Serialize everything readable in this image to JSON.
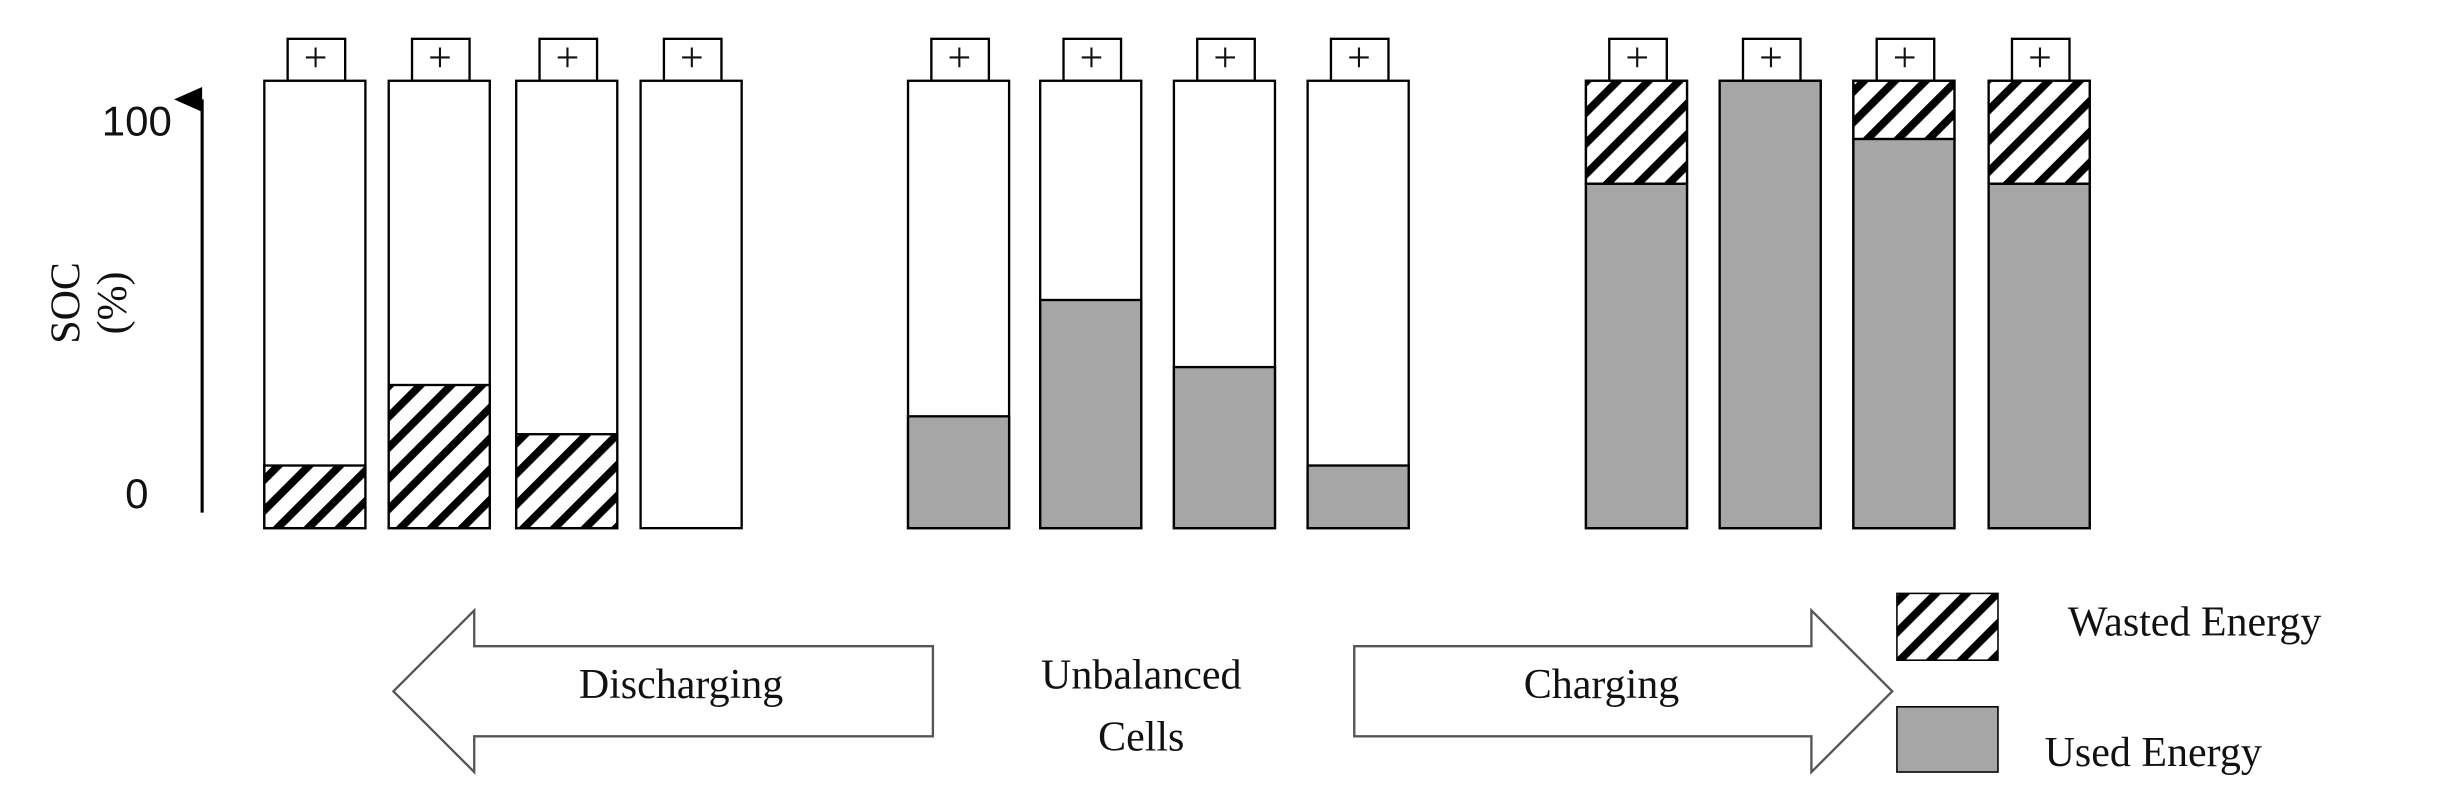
{
  "axis": {
    "label_lines": [
      "SOC",
      "(%)"
    ],
    "ylim": [
      0,
      100
    ],
    "yticks": [
      0,
      100
    ]
  },
  "terminal": "+",
  "groups": [
    {
      "cells": [
        {
          "used": 0,
          "wasted": 14
        },
        {
          "used": 0,
          "wasted": 32
        },
        {
          "used": 0,
          "wasted": 21
        },
        {
          "used": 0,
          "wasted": 0
        }
      ]
    },
    {
      "cells": [
        {
          "used": 25,
          "wasted": 0
        },
        {
          "used": 51,
          "wasted": 0
        },
        {
          "used": 36,
          "wasted": 0
        },
        {
          "used": 14,
          "wasted": 0
        }
      ]
    },
    {
      "cells": [
        {
          "used": 77,
          "wasted": 23
        },
        {
          "used": 100,
          "wasted": 0
        },
        {
          "used": 87,
          "wasted": 13
        },
        {
          "used": 77,
          "wasted": 23
        }
      ]
    }
  ],
  "arrows": [
    {
      "label": "Discharging"
    },
    {
      "label": "Charging"
    }
  ],
  "center_label": [
    "Unbalanced",
    "Cells"
  ],
  "legend": [
    {
      "label": "Wasted Energy",
      "pattern": "hatch"
    },
    {
      "label": "Used Energy",
      "color": "#a6a6a6"
    }
  ]
}
